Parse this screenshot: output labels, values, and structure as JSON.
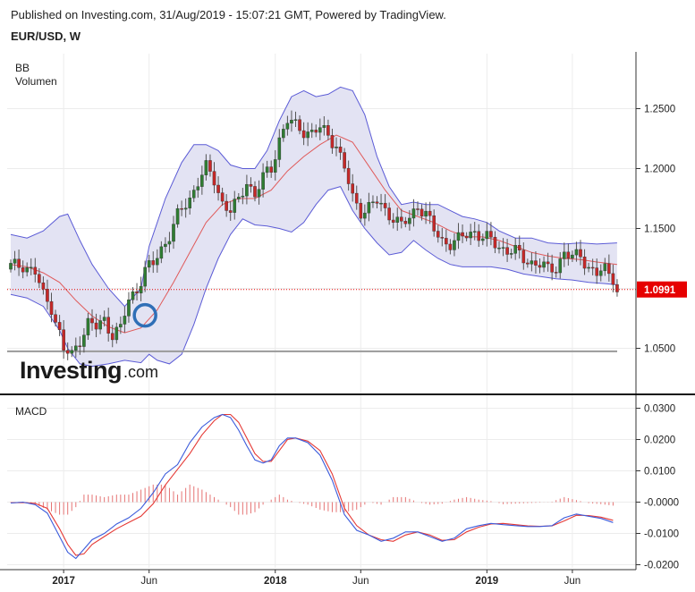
{
  "header": {
    "published": "Published on Investing.com, 31/Aug/2019 - 15:07:21 GMT, Powered by TradingView.",
    "symbol": "EUR/USD, W"
  },
  "price_panel": {
    "indicator_labels": [
      "BB",
      "Volumen"
    ],
    "last_price": "1.0991",
    "last_price_value": 1.0991,
    "support_level": 1.0475,
    "logo_text_main": "Investing",
    "logo_text_suffix": ".com"
  },
  "macd_panel": {
    "label": "MACD"
  },
  "colors": {
    "up": "#2f7d32",
    "down": "#c62828",
    "band": "#5b5bd6",
    "band_fill": "#e3e3f3",
    "ma": "#e05a5a",
    "macd": "#3b5bdb",
    "signal": "#e53935",
    "price_tag": "#e60000",
    "highlight_circle": "#2f6fb7"
  },
  "chart_data": [
    {
      "type": "candlestick",
      "title": "EUR/USD, W",
      "y_ticks": [
        "1.2500",
        "1.2000",
        "1.1500",
        "1.0500"
      ],
      "y_tick_values": [
        1.25,
        1.2,
        1.15,
        1.05
      ],
      "ylim": [
        1.03,
        1.29
      ],
      "x_tick_labels": [
        "2017",
        "Jun",
        "2018",
        "Jun",
        "2019",
        "Jun"
      ],
      "x_tick_weeks": [
        13,
        34,
        65,
        86,
        117,
        138
      ],
      "weeks": 154,
      "ohlc_anchors": [
        [
          0,
          1.118
        ],
        [
          3,
          1.12
        ],
        [
          6,
          1.113
        ],
        [
          8,
          1.094
        ],
        [
          10,
          1.085
        ],
        [
          12,
          1.062
        ],
        [
          13,
          1.048
        ],
        [
          15,
          1.044
        ],
        [
          17,
          1.058
        ],
        [
          19,
          1.071
        ],
        [
          21,
          1.067
        ],
        [
          23,
          1.074
        ],
        [
          25,
          1.062
        ],
        [
          27,
          1.066
        ],
        [
          29,
          1.09
        ],
        [
          31,
          1.1
        ],
        [
          33,
          1.115
        ],
        [
          35,
          1.12
        ],
        [
          37,
          1.133
        ],
        [
          39,
          1.145
        ],
        [
          41,
          1.16
        ],
        [
          44,
          1.175
        ],
        [
          46,
          1.19
        ],
        [
          48,
          1.2
        ],
        [
          50,
          1.19
        ],
        [
          52,
          1.172
        ],
        [
          54,
          1.165
        ],
        [
          56,
          1.172
        ],
        [
          58,
          1.19
        ],
        [
          60,
          1.178
        ],
        [
          62,
          1.192
        ],
        [
          64,
          1.2
        ],
        [
          66,
          1.225
        ],
        [
          68,
          1.24
        ],
        [
          70,
          1.235
        ],
        [
          72,
          1.232
        ],
        [
          74,
          1.23
        ],
        [
          76,
          1.233
        ],
        [
          78,
          1.228
        ],
        [
          80,
          1.22
        ],
        [
          82,
          1.2
        ],
        [
          84,
          1.175
        ],
        [
          86,
          1.165
        ],
        [
          88,
          1.168
        ],
        [
          90,
          1.172
        ],
        [
          92,
          1.165
        ],
        [
          94,
          1.16
        ],
        [
          96,
          1.152
        ],
        [
          98,
          1.158
        ],
        [
          100,
          1.17
        ],
        [
          102,
          1.162
        ],
        [
          104,
          1.148
        ],
        [
          106,
          1.14
        ],
        [
          108,
          1.138
        ],
        [
          110,
          1.14
        ],
        [
          112,
          1.145
        ],
        [
          114,
          1.148
        ],
        [
          116,
          1.142
        ],
        [
          118,
          1.14
        ],
        [
          120,
          1.135
        ],
        [
          122,
          1.132
        ],
        [
          124,
          1.13
        ],
        [
          126,
          1.125
        ],
        [
          128,
          1.122
        ],
        [
          130,
          1.12
        ],
        [
          132,
          1.115
        ],
        [
          134,
          1.118
        ],
        [
          136,
          1.13
        ],
        [
          138,
          1.125
        ],
        [
          140,
          1.128
        ],
        [
          142,
          1.118
        ],
        [
          144,
          1.112
        ],
        [
          146,
          1.115
        ],
        [
          148,
          1.11
        ],
        [
          149,
          1.099
        ]
      ],
      "bollinger_upper": [
        [
          0,
          1.145
        ],
        [
          4,
          1.142
        ],
        [
          8,
          1.148
        ],
        [
          12,
          1.16
        ],
        [
          14,
          1.162
        ],
        [
          17,
          1.14
        ],
        [
          20,
          1.12
        ],
        [
          24,
          1.1
        ],
        [
          28,
          1.085
        ],
        [
          32,
          1.1
        ],
        [
          34,
          1.135
        ],
        [
          38,
          1.175
        ],
        [
          42,
          1.205
        ],
        [
          45,
          1.22
        ],
        [
          48,
          1.22
        ],
        [
          51,
          1.215
        ],
        [
          54,
          1.203
        ],
        [
          57,
          1.2
        ],
        [
          60,
          1.2
        ],
        [
          63,
          1.215
        ],
        [
          66,
          1.24
        ],
        [
          69,
          1.26
        ],
        [
          72,
          1.265
        ],
        [
          75,
          1.26
        ],
        [
          78,
          1.262
        ],
        [
          81,
          1.268
        ],
        [
          84,
          1.265
        ],
        [
          87,
          1.245
        ],
        [
          90,
          1.21
        ],
        [
          93,
          1.185
        ],
        [
          96,
          1.17
        ],
        [
          99,
          1.172
        ],
        [
          102,
          1.17
        ],
        [
          105,
          1.17
        ],
        [
          108,
          1.165
        ],
        [
          111,
          1.16
        ],
        [
          114,
          1.158
        ],
        [
          117,
          1.155
        ],
        [
          120,
          1.148
        ],
        [
          124,
          1.142
        ],
        [
          128,
          1.142
        ],
        [
          132,
          1.138
        ],
        [
          136,
          1.137
        ],
        [
          140,
          1.138
        ],
        [
          144,
          1.137
        ],
        [
          149,
          1.138
        ]
      ],
      "bollinger_lower": [
        [
          0,
          1.095
        ],
        [
          4,
          1.092
        ],
        [
          8,
          1.085
        ],
        [
          12,
          1.065
        ],
        [
          14,
          1.05
        ],
        [
          17,
          1.037
        ],
        [
          20,
          1.035
        ],
        [
          24,
          1.037
        ],
        [
          28,
          1.04
        ],
        [
          32,
          1.038
        ],
        [
          34,
          1.045
        ],
        [
          36,
          1.04
        ],
        [
          39,
          1.037
        ],
        [
          42,
          1.045
        ],
        [
          45,
          1.07
        ],
        [
          48,
          1.1
        ],
        [
          51,
          1.125
        ],
        [
          54,
          1.145
        ],
        [
          57,
          1.158
        ],
        [
          60,
          1.153
        ],
        [
          63,
          1.152
        ],
        [
          66,
          1.15
        ],
        [
          69,
          1.147
        ],
        [
          72,
          1.155
        ],
        [
          75,
          1.17
        ],
        [
          78,
          1.182
        ],
        [
          81,
          1.185
        ],
        [
          84,
          1.165
        ],
        [
          87,
          1.15
        ],
        [
          90,
          1.138
        ],
        [
          93,
          1.128
        ],
        [
          96,
          1.13
        ],
        [
          99,
          1.14
        ],
        [
          102,
          1.132
        ],
        [
          105,
          1.125
        ],
        [
          108,
          1.12
        ],
        [
          111,
          1.118
        ],
        [
          114,
          1.118
        ],
        [
          118,
          1.118
        ],
        [
          122,
          1.116
        ],
        [
          126,
          1.112
        ],
        [
          130,
          1.11
        ],
        [
          134,
          1.108
        ],
        [
          138,
          1.107
        ],
        [
          142,
          1.105
        ],
        [
          146,
          1.104
        ],
        [
          149,
          1.103
        ]
      ],
      "ma20": [
        [
          0,
          1.12
        ],
        [
          4,
          1.118
        ],
        [
          8,
          1.113
        ],
        [
          12,
          1.105
        ],
        [
          16,
          1.09
        ],
        [
          20,
          1.077
        ],
        [
          24,
          1.068
        ],
        [
          28,
          1.063
        ],
        [
          32,
          1.067
        ],
        [
          36,
          1.082
        ],
        [
          40,
          1.105
        ],
        [
          44,
          1.13
        ],
        [
          48,
          1.155
        ],
        [
          52,
          1.17
        ],
        [
          56,
          1.175
        ],
        [
          60,
          1.175
        ],
        [
          64,
          1.182
        ],
        [
          68,
          1.198
        ],
        [
          72,
          1.21
        ],
        [
          76,
          1.22
        ],
        [
          80,
          1.228
        ],
        [
          84,
          1.222
        ],
        [
          88,
          1.202
        ],
        [
          92,
          1.182
        ],
        [
          96,
          1.165
        ],
        [
          100,
          1.16
        ],
        [
          104,
          1.155
        ],
        [
          108,
          1.148
        ],
        [
          112,
          1.143
        ],
        [
          116,
          1.143
        ],
        [
          120,
          1.14
        ],
        [
          124,
          1.135
        ],
        [
          128,
          1.13
        ],
        [
          132,
          1.127
        ],
        [
          136,
          1.125
        ],
        [
          140,
          1.124
        ],
        [
          144,
          1.122
        ],
        [
          149,
          1.12
        ]
      ]
    },
    {
      "type": "line",
      "title": "MACD",
      "y_ticks": [
        "0.0300",
        "0.0200",
        "0.0100",
        "-0.0000",
        "-0.0100",
        "-0.0200"
      ],
      "y_tick_values": [
        0.03,
        0.02,
        0.01,
        0.0,
        -0.01,
        -0.02
      ],
      "ylim": [
        -0.0195,
        0.0315
      ],
      "series": [
        {
          "key": "macd",
          "values": [
            [
              0,
              -0.0003
            ],
            [
              3,
              0.0
            ],
            [
              6,
              -0.0008
            ],
            [
              9,
              -0.0035
            ],
            [
              12,
              -0.011
            ],
            [
              14,
              -0.016
            ],
            [
              16,
              -0.018
            ],
            [
              18,
              -0.015
            ],
            [
              20,
              -0.012
            ],
            [
              23,
              -0.01
            ],
            [
              26,
              -0.007
            ],
            [
              29,
              -0.005
            ],
            [
              32,
              -0.002
            ],
            [
              35,
              0.003
            ],
            [
              38,
              0.009
            ],
            [
              41,
              0.012
            ],
            [
              44,
              0.019
            ],
            [
              47,
              0.024
            ],
            [
              50,
              0.027
            ],
            [
              52,
              0.028
            ],
            [
              54,
              0.027
            ],
            [
              56,
              0.023
            ],
            [
              58,
              0.018
            ],
            [
              60,
              0.0135
            ],
            [
              62,
              0.0125
            ],
            [
              64,
              0.0135
            ],
            [
              66,
              0.018
            ],
            [
              68,
              0.0205
            ],
            [
              70,
              0.0205
            ],
            [
              73,
              0.019
            ],
            [
              76,
              0.015
            ],
            [
              79,
              0.007
            ],
            [
              82,
              -0.004
            ],
            [
              85,
              -0.009
            ],
            [
              88,
              -0.0105
            ],
            [
              91,
              -0.0125
            ],
            [
              94,
              -0.0115
            ],
            [
              97,
              -0.0095
            ],
            [
              100,
              -0.0095
            ],
            [
              103,
              -0.011
            ],
            [
              106,
              -0.0125
            ],
            [
              109,
              -0.0115
            ],
            [
              112,
              -0.0085
            ],
            [
              115,
              -0.0075
            ],
            [
              118,
              -0.0068
            ],
            [
              121,
              -0.0072
            ],
            [
              124,
              -0.0075
            ],
            [
              127,
              -0.0078
            ],
            [
              130,
              -0.0078
            ],
            [
              133,
              -0.0075
            ],
            [
              136,
              -0.005
            ],
            [
              139,
              -0.0038
            ],
            [
              142,
              -0.0045
            ],
            [
              145,
              -0.0052
            ],
            [
              148,
              -0.0065
            ]
          ]
        },
        {
          "key": "signal",
          "values": [
            [
              0,
              -0.0002
            ],
            [
              3,
              -0.0001
            ],
            [
              6,
              -0.0004
            ],
            [
              9,
              -0.002
            ],
            [
              12,
              -0.0085
            ],
            [
              14,
              -0.0135
            ],
            [
              16,
              -0.017
            ],
            [
              18,
              -0.0165
            ],
            [
              20,
              -0.0135
            ],
            [
              23,
              -0.011
            ],
            [
              26,
              -0.0085
            ],
            [
              29,
              -0.0065
            ],
            [
              32,
              -0.0045
            ],
            [
              35,
              -0.0005
            ],
            [
              38,
              0.0055
            ],
            [
              41,
              0.0105
            ],
            [
              44,
              0.0155
            ],
            [
              47,
              0.0215
            ],
            [
              50,
              0.026
            ],
            [
              52,
              0.028
            ],
            [
              54,
              0.028
            ],
            [
              56,
              0.0255
            ],
            [
              58,
              0.0205
            ],
            [
              60,
              0.0155
            ],
            [
              62,
              0.013
            ],
            [
              64,
              0.013
            ],
            [
              66,
              0.0165
            ],
            [
              68,
              0.02
            ],
            [
              70,
              0.0205
            ],
            [
              73,
              0.0195
            ],
            [
              76,
              0.0165
            ],
            [
              79,
              0.009
            ],
            [
              82,
              -0.002
            ],
            [
              85,
              -0.0075
            ],
            [
              88,
              -0.0105
            ],
            [
              91,
              -0.012
            ],
            [
              94,
              -0.0125
            ],
            [
              97,
              -0.0105
            ],
            [
              100,
              -0.0095
            ],
            [
              103,
              -0.0105
            ],
            [
              106,
              -0.0122
            ],
            [
              109,
              -0.012
            ],
            [
              112,
              -0.0095
            ],
            [
              115,
              -0.008
            ],
            [
              118,
              -0.007
            ],
            [
              121,
              -0.0068
            ],
            [
              124,
              -0.0072
            ],
            [
              127,
              -0.0076
            ],
            [
              130,
              -0.0077
            ],
            [
              133,
              -0.0076
            ],
            [
              136,
              -0.006
            ],
            [
              139,
              -0.0042
            ],
            [
              142,
              -0.0043
            ],
            [
              145,
              -0.0048
            ],
            [
              148,
              -0.0058
            ]
          ]
        }
      ]
    }
  ]
}
